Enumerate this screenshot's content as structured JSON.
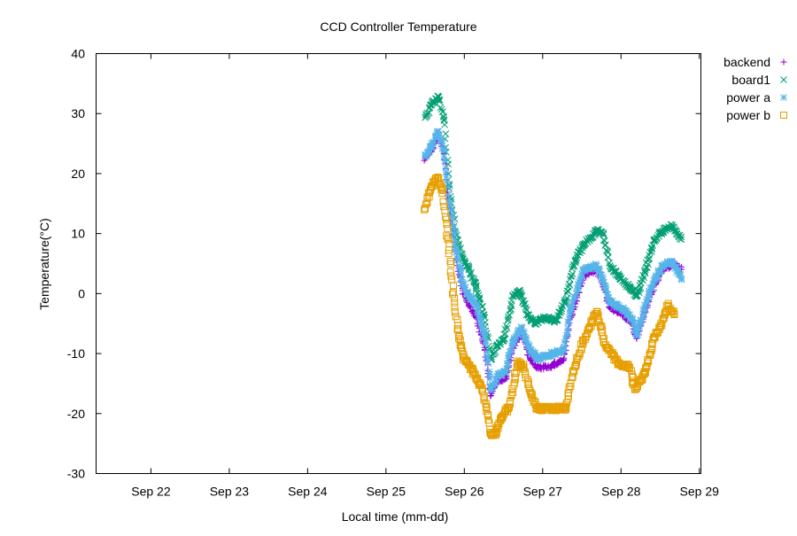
{
  "chart_data": {
    "type": "scatter",
    "title": "CCD Controller Temperature",
    "xlabel": "Local time (mm-dd)",
    "ylabel": "Temperature(°C)",
    "xlim": [
      21.3,
      29.02
    ],
    "ylim": [
      -30,
      40
    ],
    "yticks": [
      40,
      30,
      20,
      10,
      0,
      -10,
      -20,
      -30
    ],
    "xticks": [
      {
        "value": 22,
        "label": "Sep 22"
      },
      {
        "value": 23,
        "label": "Sep 23"
      },
      {
        "value": 24,
        "label": "Sep 24"
      },
      {
        "value": 25,
        "label": "Sep 25"
      },
      {
        "value": 26,
        "label": "Sep 26"
      },
      {
        "value": 27,
        "label": "Sep 27"
      },
      {
        "value": 28,
        "label": "Sep 28"
      },
      {
        "value": 29,
        "label": "Sep 29"
      }
    ],
    "legend_position": "outside-top-right",
    "series": [
      {
        "name": "backend",
        "marker": "plus",
        "color": "#9400d3",
        "x": [
          25.5,
          25.58,
          25.67,
          25.74,
          25.81,
          25.89,
          25.98,
          26.06,
          26.15,
          26.26,
          26.34,
          26.42,
          26.53,
          26.62,
          26.73,
          26.84,
          26.95,
          27.12,
          27.27,
          27.36,
          27.52,
          27.69,
          27.77,
          27.86,
          28.03,
          28.14,
          28.2,
          28.31,
          28.43,
          28.54,
          28.67,
          28.77
        ],
        "y": [
          22.5,
          24,
          26.5,
          23.3,
          14.5,
          7,
          0.5,
          -2,
          -4,
          -9,
          -17,
          -14.5,
          -14,
          -9,
          -6.5,
          -11,
          -12.5,
          -12,
          -11,
          -4,
          3,
          4,
          1.5,
          -2.5,
          -3.5,
          -5,
          -7.5,
          -3,
          1.5,
          4,
          5,
          4
        ]
      },
      {
        "name": "board1",
        "marker": "cross",
        "color": "#009e73",
        "x": [
          25.5,
          25.58,
          25.67,
          25.74,
          25.81,
          25.89,
          25.98,
          26.06,
          26.15,
          26.26,
          26.34,
          26.42,
          26.51,
          26.62,
          26.71,
          26.81,
          26.9,
          27.02,
          27.18,
          27.3,
          27.41,
          27.52,
          27.69,
          27.77,
          27.86,
          27.97,
          28.11,
          28.2,
          28.31,
          28.43,
          28.54,
          28.65,
          28.77
        ],
        "y": [
          29.3,
          31.5,
          32.9,
          29,
          18,
          10,
          6,
          4,
          1,
          -4,
          -11,
          -8.5,
          -7.5,
          -0.5,
          0.5,
          -3.5,
          -5,
          -4,
          -4.5,
          -1,
          5.5,
          8,
          10.5,
          10,
          4.6,
          3,
          1,
          -0.5,
          4,
          9,
          10.5,
          11.3,
          9
        ]
      },
      {
        "name": "power a",
        "marker": "star",
        "color": "#56b4e9",
        "x": [
          25.5,
          25.58,
          25.67,
          25.74,
          25.81,
          25.89,
          25.98,
          26.06,
          26.15,
          26.26,
          26.34,
          26.42,
          26.53,
          26.62,
          26.73,
          26.84,
          26.95,
          27.12,
          27.27,
          27.35,
          27.52,
          27.69,
          27.77,
          27.86,
          28.03,
          28.14,
          28.2,
          28.31,
          28.43,
          28.54,
          28.65,
          28.77
        ],
        "y": [
          23,
          24.5,
          27,
          23.8,
          15,
          7.6,
          1.7,
          -0.5,
          -2,
          -7,
          -16,
          -13.8,
          -13,
          -8,
          -5.7,
          -9.4,
          -10.8,
          -10,
          -9.4,
          -2.7,
          3.9,
          4.6,
          2.4,
          -1.3,
          -2.7,
          -4.2,
          -6.9,
          -2,
          2.4,
          4.6,
          5.4,
          2.5
        ]
      },
      {
        "name": "power b",
        "marker": "square",
        "color": "#e69f00",
        "x": [
          25.5,
          25.58,
          25.66,
          25.72,
          25.79,
          25.86,
          25.93,
          26.0,
          26.11,
          26.23,
          26.28,
          26.34,
          26.4,
          26.49,
          26.57,
          26.68,
          26.76,
          26.85,
          26.94,
          27.13,
          27.3,
          27.39,
          27.52,
          27.69,
          27.8,
          27.97,
          28.11,
          28.18,
          28.31,
          28.43,
          28.54,
          28.6,
          28.68
        ],
        "y": [
          14.2,
          17.9,
          19.4,
          17.2,
          9,
          0.2,
          -7.2,
          -10.8,
          -13,
          -16,
          -19,
          -23.4,
          -23.4,
          -20.4,
          -19,
          -11.6,
          -12.3,
          -16.7,
          -19.2,
          -19.2,
          -19,
          -13,
          -7.9,
          -3,
          -8.6,
          -11.6,
          -12.3,
          -16,
          -13,
          -7.2,
          -4.2,
          -2,
          -3.5
        ]
      }
    ]
  }
}
